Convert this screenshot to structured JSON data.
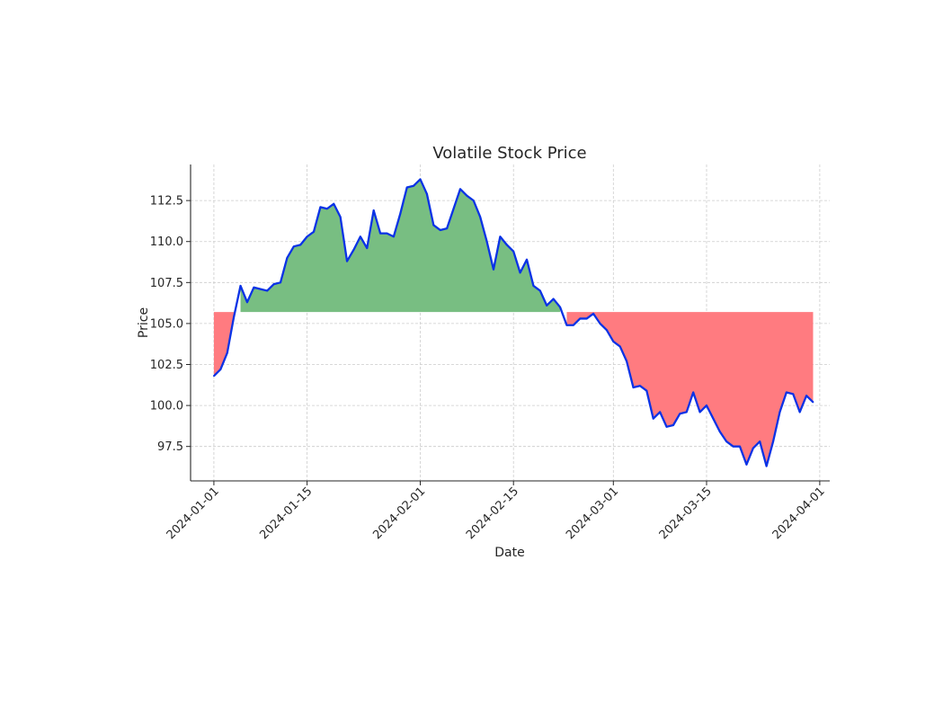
{
  "chart_data": {
    "type": "area",
    "title": "Volatile Stock Price",
    "xlabel": "Date",
    "ylabel": "Price",
    "baseline": 105.7,
    "start_date": "2024-01-01",
    "xlim_days": [
      -3.5,
      92.5
    ],
    "ylim": [
      95.4,
      114.7
    ],
    "grid": true,
    "x_ticks": [
      {
        "label": "2024-01-01",
        "day": 0
      },
      {
        "label": "2024-01-15",
        "day": 14
      },
      {
        "label": "2024-02-01",
        "day": 31
      },
      {
        "label": "2024-02-15",
        "day": 45
      },
      {
        "label": "2024-03-01",
        "day": 60
      },
      {
        "label": "2024-03-15",
        "day": 74
      },
      {
        "label": "2024-04-01",
        "day": 91
      }
    ],
    "y_ticks": [
      {
        "label": "97.5",
        "value": 97.5
      },
      {
        "label": "100.0",
        "value": 100.0
      },
      {
        "label": "102.5",
        "value": 102.5
      },
      {
        "label": "105.0",
        "value": 105.0
      },
      {
        "label": "107.5",
        "value": 107.5
      },
      {
        "label": "110.0",
        "value": 110.0
      },
      {
        "label": "112.5",
        "value": 112.5
      }
    ],
    "series": [
      {
        "name": "Price",
        "line_color": "#0a32e6",
        "above_fill": "#78be82",
        "below_fill": "#ff7b80",
        "values": [
          101.8,
          102.2,
          103.2,
          105.4,
          107.3,
          106.3,
          107.2,
          107.1,
          107.0,
          107.4,
          107.5,
          109.0,
          109.7,
          109.8,
          110.3,
          110.6,
          112.1,
          112.0,
          112.3,
          111.5,
          108.8,
          109.5,
          110.3,
          109.6,
          111.9,
          110.5,
          110.5,
          110.3,
          111.7,
          113.3,
          113.4,
          113.8,
          112.9,
          111.0,
          110.7,
          110.8,
          112.0,
          113.2,
          112.8,
          112.5,
          111.5,
          110.0,
          108.3,
          110.3,
          109.8,
          109.4,
          108.1,
          108.9,
          107.3,
          107.0,
          106.1,
          106.5,
          106.0,
          104.9,
          104.9,
          105.3,
          105.3,
          105.6,
          105.0,
          104.6,
          103.9,
          103.6,
          102.7,
          101.1,
          101.2,
          100.9,
          99.2,
          99.6,
          98.7,
          98.8,
          99.5,
          99.6,
          100.8,
          99.6,
          100.0,
          99.2,
          98.4,
          97.8,
          97.5,
          97.5,
          96.4,
          97.4,
          97.8,
          96.3,
          97.8,
          99.6,
          100.8,
          100.7,
          99.6,
          100.6,
          100.2
        ]
      }
    ]
  }
}
